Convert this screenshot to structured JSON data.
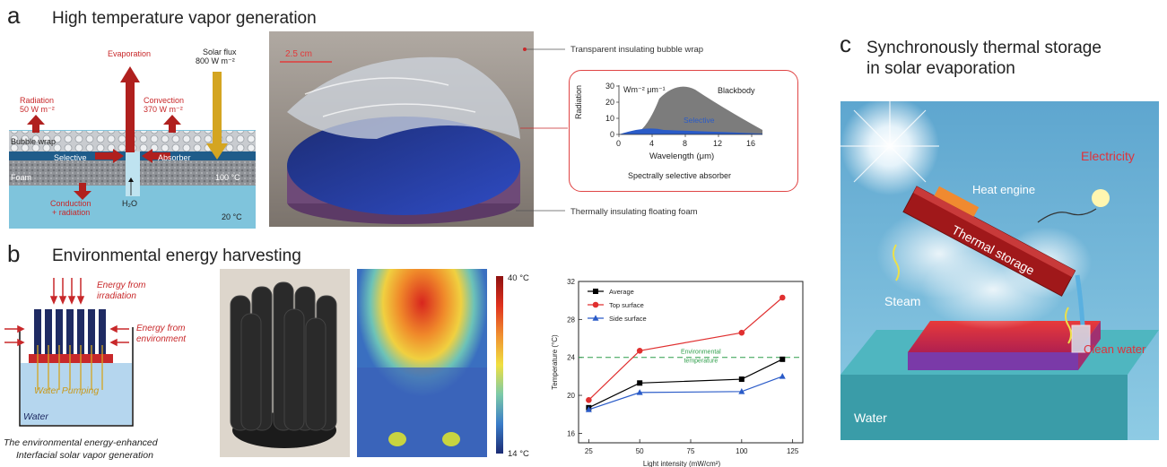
{
  "panel_a": {
    "letter": "a",
    "title": "High temperature vapor generation",
    "schematic": {
      "evaporation": "Evaporation",
      "solar_flux_1": "Solar flux",
      "solar_flux_2": "800 W m⁻²",
      "radiation_1": "Radiation",
      "radiation_2": "50 W m⁻²",
      "convection_1": "Convection",
      "convection_2": "370 W m⁻²",
      "bubble_wrap": "Bubble wrap",
      "selective": "Selective",
      "absorber": "Absorber",
      "foam": "Foam",
      "temp_100": "100 °C",
      "conduction_1": "Conduction",
      "conduction_2": "+ radiation",
      "h2o": "H₂O",
      "temp_20": "20 °C"
    },
    "photo": {
      "scale": "2.5 cm",
      "callout_top": "Transparent insulating bubble wrap",
      "callout_bottom": "Thermally insulating floating foam"
    },
    "inset": {
      "ylabel": "Radiation",
      "unit": "Wm⁻² μm⁻¹",
      "xlabel": "Wavelength (μm)",
      "blackbody": "Blackbody",
      "selective": "Selective",
      "caption": "Spectrally selective absorber",
      "xticks": [
        "0",
        "4",
        "8",
        "12",
        "16"
      ],
      "yticks": [
        "0",
        "10",
        "20",
        "30"
      ]
    }
  },
  "panel_b": {
    "letter": "b",
    "title": "Environmental energy harvesting",
    "schematic": {
      "irradiation_1": "Energy from",
      "irradiation_2": "irradiation",
      "environment_1": "Energy from",
      "environment_2": "environment",
      "water_pumping": "Water Pumping",
      "water": "Water",
      "caption_1": "The environmental energy-enhanced",
      "caption_2": "Interfacial solar vapor generation"
    },
    "colorbar": {
      "max": "40 °C",
      "min": "14 °C"
    }
  },
  "panel_c": {
    "letter": "c",
    "title_1": "Synchronously thermal storage",
    "title_2": "in solar evaporation",
    "labels": {
      "electricity": "Electricity",
      "heat_engine": "Heat engine",
      "thermal_storage": "Thermal storage",
      "steam": "Steam",
      "clean_water": "Clean water",
      "water": "Water"
    }
  },
  "chart_data": {
    "type": "line",
    "xlabel": "Light intensity (mW/cm²)",
    "ylabel": "Temperature (°C)",
    "xlim": [
      20,
      130
    ],
    "ylim": [
      15,
      32
    ],
    "xticks": [
      25,
      50,
      75,
      100,
      125
    ],
    "yticks": [
      16,
      20,
      24,
      28,
      32
    ],
    "x": [
      25,
      50,
      100,
      120
    ],
    "series": [
      {
        "name": "Average",
        "color": "#000000",
        "marker": "square",
        "values": [
          18.7,
          21.3,
          21.7,
          23.8
        ]
      },
      {
        "name": "Top surface",
        "color": "#e03030",
        "marker": "circle",
        "values": [
          19.5,
          24.7,
          26.6,
          30.3
        ]
      },
      {
        "name": "Side surface",
        "color": "#2a5bc8",
        "marker": "triangle",
        "values": [
          18.5,
          20.3,
          20.4,
          22.0
        ]
      }
    ],
    "reference_line": {
      "label_1": "Environmental",
      "label_2": "temperature",
      "value": 24,
      "color": "#2e9e4a"
    },
    "legend": "top-left"
  }
}
